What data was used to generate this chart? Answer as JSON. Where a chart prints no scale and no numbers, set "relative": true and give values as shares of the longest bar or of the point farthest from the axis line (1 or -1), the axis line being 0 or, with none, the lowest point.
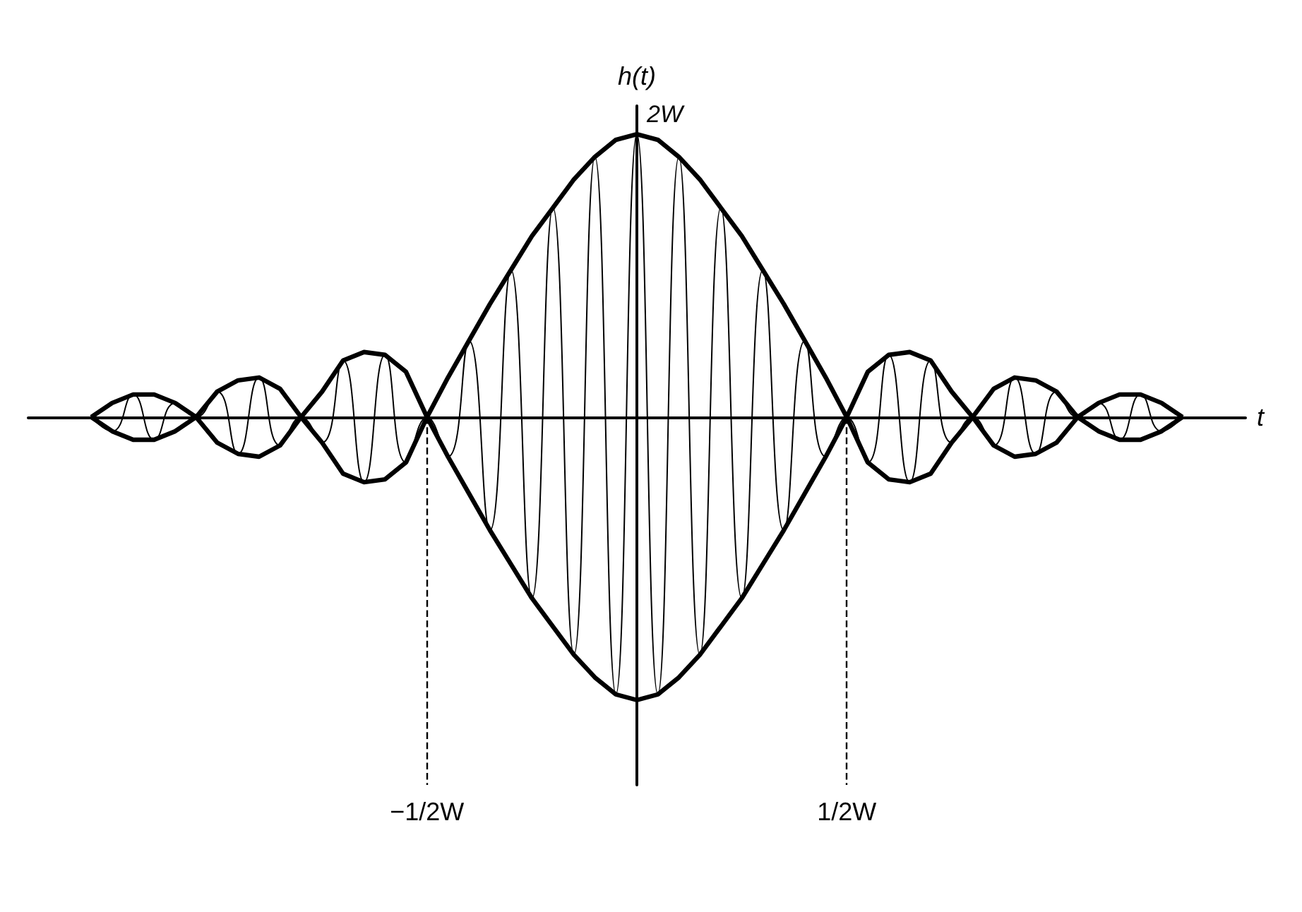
{
  "chart_data": {
    "type": "line",
    "relative": true,
    "xlabel": "t",
    "ylabel": "h(t)",
    "categories": [
      null,
      null,
      null,
      null,
      null,
      null,
      null,
      null,
      null,
      null,
      null,
      null,
      null,
      null,
      null,
      null,
      null,
      null,
      null,
      "−1/2W",
      null,
      null,
      null,
      null,
      null,
      null,
      null,
      null,
      null,
      null,
      null,
      null,
      null,
      null,
      null,
      null,
      null,
      null,
      null,
      "1/2W",
      null,
      null,
      null,
      null,
      null,
      null,
      null,
      null,
      null,
      null,
      null,
      null,
      null,
      null,
      null,
      null,
      null,
      null,
      null
    ],
    "annotations": [
      {
        "text": "2W",
        "y": 1
      }
    ],
    "ref_lines": [
      {
        "axis": "x",
        "value": "−1/2W",
        "line_style": "dashed"
      },
      {
        "axis": "x",
        "value": "1/2W",
        "line_style": "dashed"
      }
    ],
    "marker": "none",
    "series": [
      {
        "color": "#000000",
        "values": [
          null,
          null,
          null,
          0,
          -0.05,
          0.08,
          -0.08,
          0.05,
          0,
          0.09,
          -0.13,
          0.14,
          -0.1,
          0,
          -0.09,
          0.2,
          -0.23,
          0.22,
          -0.16,
          0,
          -0.14,
          0.27,
          -0.4,
          0.52,
          -0.64,
          0.74,
          -0.84,
          0.92,
          -0.98,
          1,
          -0.98,
          0.92,
          -0.84,
          0.74,
          -0.64,
          0.52,
          -0.4,
          0.27,
          -0.14,
          0,
          -0.16,
          0.22,
          -0.23,
          0.2,
          -0.09,
          0,
          -0.1,
          0.14,
          -0.13,
          0.09,
          0,
          0.05,
          -0.08,
          0.08,
          -0.05,
          0,
          null,
          null,
          null
        ]
      },
      {
        "color": "#000000",
        "values": [
          null,
          null,
          null,
          0,
          0.05,
          0.08,
          0.08,
          0.05,
          0,
          0.09,
          0.13,
          0.14,
          0.1,
          0,
          0.09,
          0.2,
          0.23,
          0.22,
          0.16,
          0,
          0.14,
          0.27,
          0.4,
          0.52,
          0.64,
          0.74,
          0.84,
          0.92,
          0.98,
          1,
          0.98,
          0.92,
          0.84,
          0.74,
          0.64,
          0.52,
          0.4,
          0.27,
          0.14,
          0,
          0.16,
          0.22,
          0.23,
          0.2,
          0.09,
          0,
          0.1,
          0.14,
          0.13,
          0.09,
          0,
          0.05,
          0.08,
          0.08,
          0.05,
          0,
          null,
          null,
          null
        ]
      },
      {
        "color": "#000000",
        "values": [
          null,
          null,
          null,
          0,
          -0.05,
          -0.08,
          -0.08,
          -0.05,
          0,
          -0.09,
          -0.13,
          -0.14,
          -0.1,
          0,
          -0.09,
          -0.2,
          -0.23,
          -0.22,
          -0.16,
          0,
          -0.14,
          -0.27,
          -0.4,
          -0.52,
          -0.64,
          -0.74,
          -0.84,
          -0.92,
          -0.98,
          -1,
          -0.98,
          -0.92,
          -0.84,
          -0.74,
          -0.64,
          -0.52,
          -0.4,
          -0.27,
          -0.14,
          0,
          -0.16,
          -0.22,
          -0.23,
          -0.2,
          -0.09,
          0,
          -0.1,
          -0.14,
          -0.13,
          -0.09,
          0,
          -0.05,
          -0.08,
          -0.08,
          -0.05,
          0,
          null,
          null,
          null
        ]
      }
    ]
  }
}
